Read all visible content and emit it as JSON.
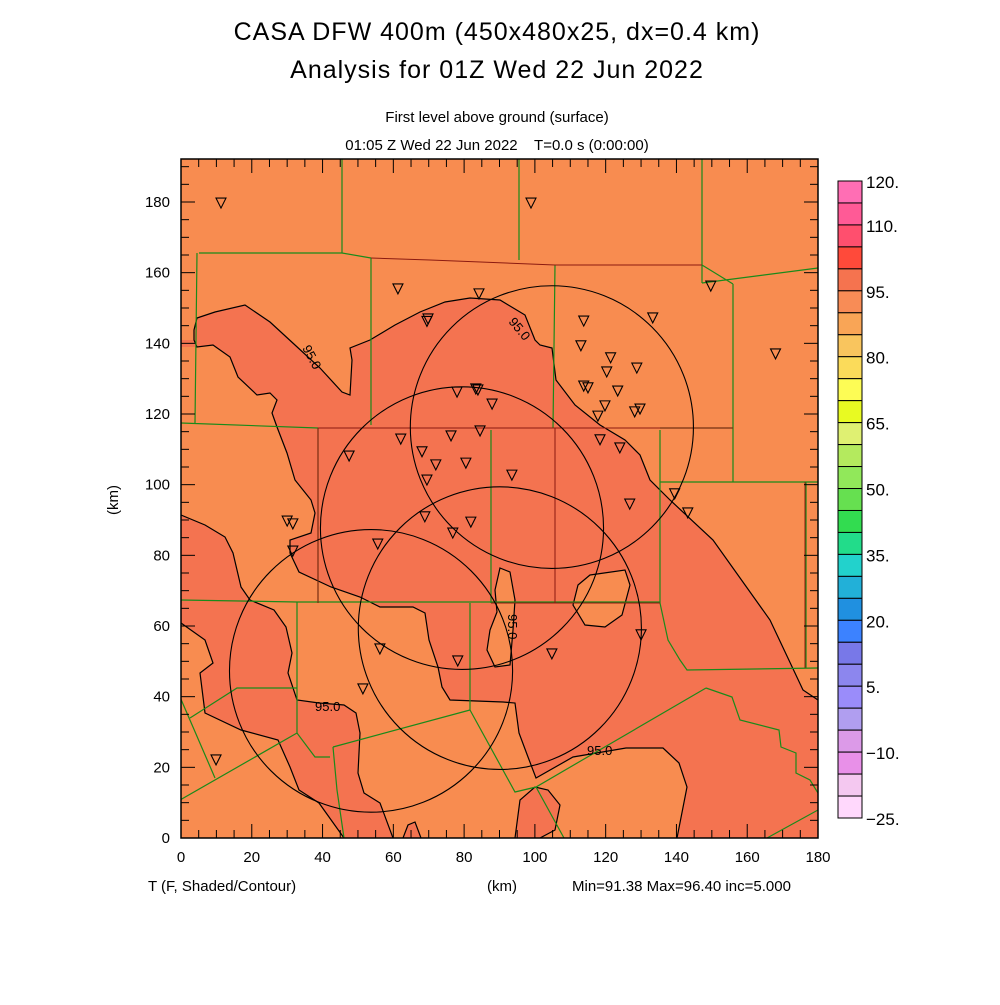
{
  "title": {
    "line1": "CASA DFW 400m (450x480x25, dx=0.4 km)",
    "line2": "Analysis for 01Z Wed 22 Jun 2022",
    "level": "First level above ground (surface)",
    "time": "01:05 Z Wed 22 Jun 2022    T=0.0 s (0:00:00)"
  },
  "footer": {
    "field": "T (F, Shaded/Contour)",
    "xunits": "(km)",
    "stats": "Min=91.38 Max=96.40 inc=5.000"
  },
  "chart_data": {
    "type": "heatmap",
    "xlabel": "(km)",
    "ylabel": "(km)",
    "xlim": [
      0,
      180
    ],
    "ylim": [
      0,
      192
    ],
    "xticks": [
      "0",
      "20",
      "40",
      "60",
      "80",
      "100",
      "120",
      "140",
      "160",
      "180"
    ],
    "yticks": [
      "0",
      "20",
      "40",
      "60",
      "80",
      "100",
      "120",
      "140",
      "160",
      "180"
    ],
    "field_min": 91.38,
    "field_max": 96.4,
    "contour_increment": 5.0,
    "contour_labels": [
      "95.0",
      "95.0",
      "95.0",
      "95.0",
      "95.0"
    ],
    "colorbar": {
      "labels": [
        "120.",
        "110.",
        "95.",
        "80.",
        "65.",
        "50.",
        "35.",
        "20.",
        "5.",
        "-10.",
        "-25."
      ],
      "label_values": [
        120,
        110,
        95,
        80,
        65,
        50,
        35,
        20,
        5,
        -10,
        -25
      ],
      "min": -25,
      "max": 120,
      "step": 5,
      "colors": [
        "#ff6eb4",
        "#ff5a96",
        "#ff4f6e",
        "#ff4a3a",
        "#f5734f",
        "#f88c56",
        "#f9a556",
        "#f9c55e",
        "#fbdb5a",
        "#fdfc55",
        "#e8fa22",
        "#dff072",
        "#b4ea5e",
        "#91e85a",
        "#66e050",
        "#32dc50",
        "#22dc8a",
        "#22d2cc",
        "#22b0d8",
        "#2090e0",
        "#3c82ff",
        "#7878e8",
        "#8c86ee",
        "#9a8cfa",
        "#b09ef0",
        "#dc9ae8",
        "#e890e8",
        "#f4c8f0",
        "#ffd8fc"
      ]
    },
    "shading": {
      "90_95": "#f88c50",
      "95_100": "#f47350"
    },
    "radar_range_rings_km": [
      {
        "x": 104.8,
        "y": 116.3,
        "r": 40
      },
      {
        "x": 79.4,
        "y": 87.7,
        "r": 40
      },
      {
        "x": 90.1,
        "y": 59.4,
        "r": 40
      },
      {
        "x": 53.7,
        "y": 47.3,
        "r": 40
      }
    ],
    "stations_km": [
      [
        11.3,
        179.7
      ],
      [
        98.9,
        179.7
      ],
      [
        61.3,
        155.4
      ],
      [
        84.2,
        154
      ],
      [
        69.8,
        146.9
      ],
      [
        69.5,
        146.2
      ],
      [
        113.8,
        146.3
      ],
      [
        133.3,
        147.2
      ],
      [
        149.7,
        156.2
      ],
      [
        168,
        137
      ],
      [
        113,
        139.3
      ],
      [
        121.4,
        135.9
      ],
      [
        120.3,
        131.9
      ],
      [
        128.8,
        133
      ],
      [
        113.8,
        127.9
      ],
      [
        115,
        127.4
      ],
      [
        123.4,
        126.5
      ],
      [
        119.8,
        122.3
      ],
      [
        117.8,
        119.4
      ],
      [
        129.7,
        121.4
      ],
      [
        128.2,
        120.6
      ],
      [
        78,
        126.2
      ],
      [
        83.3,
        127.1
      ],
      [
        83.9,
        126.8
      ],
      [
        87.9,
        122.8
      ],
      [
        84.5,
        115.2
      ],
      [
        76.3,
        113.8
      ],
      [
        62.1,
        112.9
      ],
      [
        68.1,
        109.3
      ],
      [
        47.5,
        108.1
      ],
      [
        72,
        105.6
      ],
      [
        80.5,
        106.1
      ],
      [
        69.5,
        101.3
      ],
      [
        93.5,
        102.7
      ],
      [
        118.4,
        112.7
      ],
      [
        124,
        110.4
      ],
      [
        139.5,
        97.4
      ],
      [
        143.2,
        92
      ],
      [
        126.8,
        94.5
      ],
      [
        68.9,
        90.9
      ],
      [
        81.9,
        89.4
      ],
      [
        30,
        89.7
      ],
      [
        31.6,
        88.9
      ],
      [
        31.6,
        81.2
      ],
      [
        55.6,
        83.2
      ],
      [
        76.8,
        86.3
      ],
      [
        56.2,
        53.5
      ],
      [
        78.2,
        50.1
      ],
      [
        104.8,
        52.1
      ],
      [
        130,
        57.5
      ],
      [
        51.4,
        42.2
      ],
      [
        9.9,
        22.1
      ]
    ]
  }
}
